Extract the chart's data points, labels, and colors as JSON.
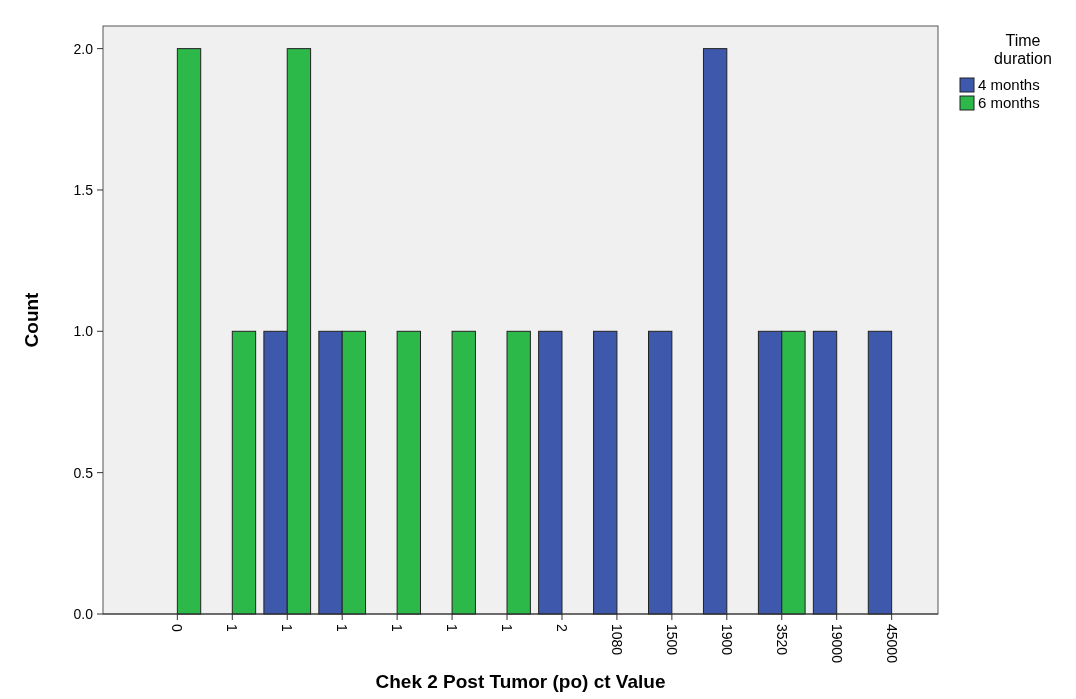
{
  "chart_data": {
    "type": "bar",
    "xlabel": "Chek 2 Post Tumor (po) ct Value",
    "ylabel": "Count",
    "legend_title": "Time duration",
    "categories": [
      "0",
      "1",
      "1",
      "1",
      "1",
      "1",
      "1",
      "2",
      "1080",
      "1500",
      "1900",
      "3520",
      "19000",
      "45000"
    ],
    "series": [
      {
        "name": "4 months",
        "color": "#3e58ac",
        "values": [
          0,
          0,
          1,
          1,
          0,
          0,
          0,
          1,
          1,
          1,
          2,
          1,
          1,
          1
        ]
      },
      {
        "name": "6 months",
        "color": "#2db84a",
        "values": [
          2,
          1,
          2,
          1,
          1,
          1,
          1,
          0,
          0,
          0,
          0,
          1,
          0,
          0
        ]
      }
    ],
    "ylim": [
      0,
      2.08
    ],
    "yticks": [
      {
        "value": 0,
        "label": "0.0"
      },
      {
        "value": 0.5,
        "label": "0.5"
      },
      {
        "value": 1,
        "label": "1.0"
      },
      {
        "value": 1.5,
        "label": "1.5"
      },
      {
        "value": 2,
        "label": "2.0"
      }
    ],
    "grid": false,
    "legend": "top right"
  }
}
